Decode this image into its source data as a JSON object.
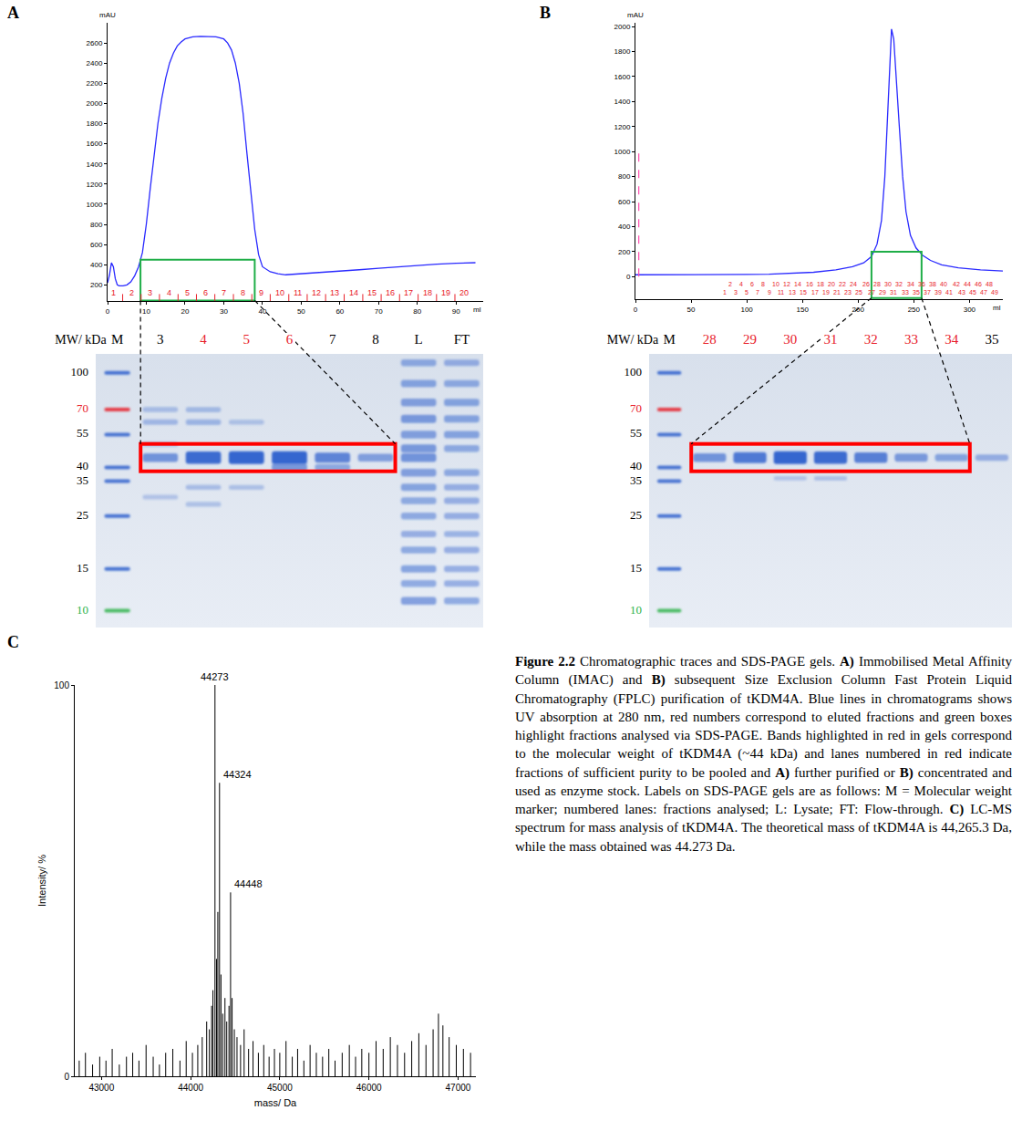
{
  "chart_data": [
    {
      "panel": "A",
      "type": "line",
      "y_label": "mAU",
      "x_label": "ml",
      "color": "#2a2aff",
      "x": [
        0,
        0.5,
        1,
        1.5,
        2,
        2.5,
        3,
        4,
        5,
        6,
        7,
        8,
        9,
        10,
        11,
        12,
        13,
        14,
        15,
        16,
        17,
        18,
        19,
        20,
        22,
        24,
        26,
        28,
        30,
        31,
        32,
        33,
        34,
        35,
        36,
        37,
        38,
        39,
        40,
        42,
        44,
        46,
        50,
        55,
        60,
        65,
        70,
        75,
        80,
        85,
        90,
        95
      ],
      "values": [
        220,
        300,
        420,
        380,
        260,
        200,
        190,
        190,
        200,
        230,
        290,
        380,
        520,
        800,
        1150,
        1500,
        1800,
        2050,
        2250,
        2400,
        2500,
        2570,
        2610,
        2640,
        2660,
        2665,
        2665,
        2660,
        2640,
        2600,
        2530,
        2400,
        2200,
        1900,
        1500,
        1100,
        750,
        500,
        380,
        330,
        310,
        300,
        310,
        320,
        335,
        350,
        365,
        380,
        395,
        405,
        415,
        420
      ],
      "xlim": [
        0,
        97
      ],
      "xticks": [
        0,
        10,
        20,
        30,
        40,
        50,
        60,
        70,
        80,
        90
      ],
      "ylim": [
        40,
        2800
      ],
      "yticks": [
        200,
        400,
        600,
        800,
        1000,
        1200,
        1400,
        1600,
        1800,
        2000,
        2200,
        2400,
        2600
      ],
      "fractions": {
        "labels": [
          "1",
          "2",
          "3",
          "4",
          "5",
          "6",
          "7",
          "8",
          "9",
          "10",
          "11",
          "12",
          "13",
          "14",
          "15",
          "16",
          "17",
          "18",
          "19",
          "20"
        ],
        "x": [
          1.5,
          6.3,
          11,
          15.8,
          20.6,
          25.3,
          30.1,
          34.9,
          39.6,
          44.4,
          49.2,
          53.9,
          58.7,
          63.5,
          68.3,
          73,
          77.8,
          82.6,
          87.3,
          92.1
        ],
        "color": "#e8202a"
      },
      "highlight": {
        "xlim": [
          8.5,
          38
        ],
        "ylim": [
          45,
          450
        ],
        "color": "#1fae48"
      }
    },
    {
      "panel": "B",
      "type": "line",
      "y_label": "mAU",
      "x_label": "ml",
      "color": "#2a2aff",
      "x": [
        0,
        20,
        40,
        60,
        80,
        100,
        120,
        140,
        160,
        180,
        195,
        205,
        212,
        217,
        221,
        224,
        226,
        228,
        230,
        232,
        234,
        237,
        240,
        243,
        247,
        252,
        258,
        265,
        275,
        290,
        310,
        330
      ],
      "values": [
        15,
        15,
        14,
        15,
        16,
        18,
        20,
        25,
        35,
        55,
        80,
        110,
        160,
        260,
        450,
        800,
        1200,
        1650,
        1980,
        1900,
        1650,
        1200,
        800,
        520,
        330,
        230,
        170,
        130,
        95,
        70,
        55,
        45
      ],
      "xlim": [
        0,
        330
      ],
      "xticks": [
        0,
        50,
        100,
        150,
        200,
        250,
        300
      ],
      "ylim": [
        -180,
        2030
      ],
      "yticks": [
        0,
        200,
        400,
        600,
        800,
        1000,
        1200,
        1400,
        1600,
        1800,
        2000
      ],
      "fractions": {
        "labels": [
          "1",
          "2",
          "3",
          "4",
          "5",
          "6",
          "7",
          "8",
          "9",
          "10",
          "11",
          "12",
          "13",
          "14",
          "15",
          "16",
          "17",
          "18",
          "19",
          "20",
          "21",
          "22",
          "23",
          "24",
          "25",
          "26",
          "27",
          "28",
          "29",
          "30",
          "31",
          "32",
          "33",
          "34",
          "35",
          "36",
          "37",
          "38",
          "39",
          "40",
          "41",
          "42",
          "43",
          "44",
          "45",
          "46",
          "47",
          "48",
          "49"
        ],
        "x": [
          80,
          85,
          90,
          95,
          100,
          105,
          110,
          115,
          120,
          126,
          131,
          136,
          141,
          146,
          151,
          156,
          161,
          166,
          171,
          176,
          181,
          186,
          191,
          196,
          201,
          207,
          212,
          217,
          222,
          227,
          232,
          237,
          242,
          247,
          252,
          257,
          262,
          267,
          272,
          277,
          282,
          288,
          293,
          298,
          303,
          308,
          313,
          318,
          323
        ],
        "color": "#e8202a"
      },
      "highlight": {
        "xlim": [
          212,
          257
        ],
        "ylim": [
          -170,
          200
        ],
        "color": "#1fae48"
      },
      "vline": {
        "x": 3,
        "y": [
          0,
          1000
        ],
        "color": "#ff4fb0",
        "line_style": "dashed"
      }
    },
    {
      "panel": "C",
      "type": "stick",
      "x_label": "mass/ Da",
      "y_label": "Intensity/ %",
      "color": "#000000",
      "x": [
        42750,
        42820,
        42900,
        42980,
        43050,
        43120,
        43200,
        43280,
        43350,
        43420,
        43500,
        43580,
        43650,
        43720,
        43800,
        43880,
        43950,
        44020,
        44080,
        44130,
        44180,
        44210,
        44235,
        44250,
        44273,
        44290,
        44305,
        44324,
        44340,
        44360,
        44385,
        44405,
        44430,
        44448,
        44465,
        44490,
        44520,
        44560,
        44600,
        44650,
        44700,
        44760,
        44820,
        44880,
        44940,
        45000,
        45070,
        45140,
        45200,
        45270,
        45340,
        45410,
        45480,
        45550,
        45620,
        45700,
        45780,
        45850,
        45920,
        46000,
        46080,
        46160,
        46240,
        46320,
        46400,
        46480,
        46560,
        46640,
        46720,
        46780,
        46830,
        46900,
        46980,
        47060,
        47140
      ],
      "values": [
        4,
        6,
        3,
        5,
        4,
        7,
        3,
        5,
        6,
        4,
        8,
        5,
        3,
        6,
        7,
        4,
        9,
        6,
        8,
        10,
        14,
        12,
        18,
        22,
        100,
        30,
        42,
        75,
        26,
        16,
        20,
        14,
        18,
        47,
        20,
        12,
        10,
        8,
        12,
        7,
        9,
        6,
        8,
        5,
        7,
        6,
        9,
        5,
        7,
        4,
        8,
        6,
        5,
        7,
        4,
        6,
        8,
        5,
        7,
        6,
        9,
        7,
        10,
        8,
        6,
        9,
        11,
        8,
        12,
        16,
        13,
        10,
        8,
        7,
        6
      ],
      "xlim": [
        42700,
        47200
      ],
      "xticks": [
        43000,
        44000,
        45000,
        46000,
        47000
      ],
      "ylim": [
        0,
        100
      ],
      "yticks": [
        0,
        100
      ],
      "peak_labels": [
        44273,
        44324,
        44448
      ]
    }
  ],
  "gels": [
    {
      "panel": "A",
      "axis_label": "MW/ kDa",
      "kda_range": [
        120,
        8.5
      ],
      "band_kda": 44,
      "box_color": "#ff0000",
      "ladder": [
        {
          "kda": 100,
          "color": "#000000"
        },
        {
          "kda": 70,
          "color": "#e8202a"
        },
        {
          "kda": 55,
          "color": "#000000"
        },
        {
          "kda": 40,
          "color": "#000000"
        },
        {
          "kda": 35,
          "color": "#000000"
        },
        {
          "kda": 25,
          "color": "#000000"
        },
        {
          "kda": 15,
          "color": "#000000"
        },
        {
          "kda": 10,
          "color": "#2db34a"
        }
      ],
      "lanes": [
        {
          "label": "M",
          "color": "#000000",
          "marker": true
        },
        {
          "label": "3",
          "color": "#000000",
          "boxed": true,
          "bands": [
            [
              44,
              0.55
            ],
            [
              62,
              0.2
            ],
            [
              70,
              0.15
            ],
            [
              50,
              0.12
            ],
            [
              30,
              0.1
            ]
          ]
        },
        {
          "label": "4",
          "color": "#e8202a",
          "boxed": true,
          "bands": [
            [
              44,
              0.95
            ],
            [
              62,
              0.22
            ],
            [
              70,
              0.18
            ],
            [
              33,
              0.15
            ],
            [
              28,
              0.12
            ]
          ]
        },
        {
          "label": "5",
          "color": "#e8202a",
          "boxed": true,
          "bands": [
            [
              44,
              1
            ],
            [
              62,
              0.12
            ],
            [
              33,
              0.12
            ]
          ]
        },
        {
          "label": "6",
          "color": "#e8202a",
          "boxed": true,
          "bands": [
            [
              44,
              1
            ],
            [
              40,
              0.5
            ]
          ]
        },
        {
          "label": "7",
          "color": "#000000",
          "boxed": true,
          "bands": [
            [
              44,
              0.7
            ],
            [
              40,
              0.35
            ]
          ]
        },
        {
          "label": "8",
          "color": "#000000",
          "boxed": true,
          "bands": [
            [
              44,
              0.45
            ]
          ]
        },
        {
          "label": "L",
          "color": "#000000",
          "bands": [
            [
              110,
              0.35
            ],
            [
              90,
              0.4
            ],
            [
              75,
              0.45
            ],
            [
              64,
              0.5
            ],
            [
              55,
              0.45
            ],
            [
              48,
              0.5
            ],
            [
              44,
              0.55
            ],
            [
              38,
              0.45
            ],
            [
              33,
              0.4
            ],
            [
              29,
              0.35
            ],
            [
              25,
              0.35
            ],
            [
              21,
              0.3
            ],
            [
              18,
              0.35
            ],
            [
              15,
              0.4
            ],
            [
              13,
              0.35
            ],
            [
              11,
              0.45
            ]
          ]
        },
        {
          "label": "FT",
          "color": "#000000",
          "bands": [
            [
              110,
              0.3
            ],
            [
              90,
              0.35
            ],
            [
              75,
              0.4
            ],
            [
              64,
              0.4
            ],
            [
              55,
              0.4
            ],
            [
              48,
              0.35
            ],
            [
              38,
              0.35
            ],
            [
              33,
              0.3
            ],
            [
              29,
              0.3
            ],
            [
              25,
              0.3
            ],
            [
              21,
              0.25
            ],
            [
              18,
              0.3
            ],
            [
              15,
              0.3
            ],
            [
              13,
              0.3
            ],
            [
              11,
              0.35
            ]
          ]
        }
      ]
    },
    {
      "panel": "B",
      "axis_label": "MW/ kDa",
      "kda_range": [
        120,
        8.5
      ],
      "band_kda": 44,
      "box_color": "#ff0000",
      "ladder": [
        {
          "kda": 100,
          "color": "#000000"
        },
        {
          "kda": 70,
          "color": "#e8202a"
        },
        {
          "kda": 55,
          "color": "#000000"
        },
        {
          "kda": 40,
          "color": "#000000"
        },
        {
          "kda": 35,
          "color": "#000000"
        },
        {
          "kda": 25,
          "color": "#000000"
        },
        {
          "kda": 15,
          "color": "#000000"
        },
        {
          "kda": 10,
          "color": "#2db34a"
        }
      ],
      "lanes": [
        {
          "label": "M",
          "color": "#000000",
          "marker": true
        },
        {
          "label": "28",
          "color": "#e8202a",
          "boxed": true,
          "bands": [
            [
              44,
              0.55
            ]
          ]
        },
        {
          "label": "29",
          "color": "#e8202a",
          "boxed": true,
          "bands": [
            [
              44,
              0.8
            ]
          ]
        },
        {
          "label": "30",
          "color": "#e8202a",
          "boxed": true,
          "bands": [
            [
              44,
              1
            ],
            [
              36,
              0.08
            ]
          ]
        },
        {
          "label": "31",
          "color": "#e8202a",
          "boxed": true,
          "bands": [
            [
              44,
              0.95
            ],
            [
              36,
              0.1
            ]
          ]
        },
        {
          "label": "32",
          "color": "#e8202a",
          "boxed": true,
          "bands": [
            [
              44,
              0.75
            ]
          ]
        },
        {
          "label": "33",
          "color": "#e8202a",
          "boxed": true,
          "bands": [
            [
              44,
              0.5
            ]
          ]
        },
        {
          "label": "34",
          "color": "#e8202a",
          "boxed": true,
          "bands": [
            [
              44,
              0.4
            ]
          ]
        },
        {
          "label": "35",
          "color": "#000000",
          "bands": [
            [
              44,
              0.3
            ]
          ]
        }
      ]
    }
  ],
  "caption": [
    {
      "bold": true,
      "text": "Figure 2.2"
    },
    {
      "text": " Chromatographic traces and SDS-PAGE gels. "
    },
    {
      "bold": true,
      "text": "A)"
    },
    {
      "text": " Immobilised Metal Affinity Column (IMAC) and "
    },
    {
      "bold": true,
      "text": "B)"
    },
    {
      "text": " subsequent Size Exclusion Column Fast Protein Liquid Chromatography (FPLC) purification of tKDM4A. Blue lines in chromatograms shows UV absorption at 280 nm, red numbers correspond to eluted fractions and green boxes highlight fractions analysed via SDS-PAGE. Bands highlighted in red in gels correspond to the molecular weight of tKDM4A (~44 kDa) and lanes numbered in red indicate fractions of sufficient purity to be pooled and "
    },
    {
      "bold": true,
      "text": "A)"
    },
    {
      "text": " further purified or "
    },
    {
      "bold": true,
      "text": "B)"
    },
    {
      "text": " concentrated and used as enzyme stock. Labels on SDS-PAGE gels are as follows: M = Molecular weight marker; numbered lanes: fractions analysed; L: Lysate; FT: Flow-through. "
    },
    {
      "bold": true,
      "text": "C)"
    },
    {
      "text": " LC-MS spectrum for mass analysis of tKDM4A. The theoretical mass of tKDM4A is 44,265.3 Da, while the mass obtained was 44.273 Da."
    }
  ]
}
